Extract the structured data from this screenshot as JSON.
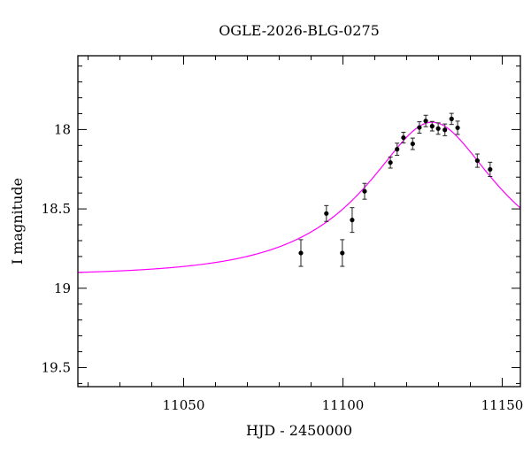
{
  "chart_data": {
    "type": "scatter",
    "title": "OGLE-2026-BLG-0275",
    "xlabel": "HJD - 2450000",
    "ylabel": "I magnitude",
    "xlim": [
      11016.8,
      11155.7
    ],
    "ylim": [
      17.535,
      19.62
    ],
    "y_inverted": true,
    "grid": false,
    "x_ticks": [
      11050,
      11100,
      11150
    ],
    "x_tick_labels": [
      "11050",
      "11100",
      "11150"
    ],
    "x_minor_step": 10,
    "y_ticks": [
      18,
      18.5,
      19,
      19.5
    ],
    "y_tick_labels": [
      "18",
      "18.5",
      "19",
      "19.5"
    ],
    "y_minor_step": 0.1,
    "series": [
      {
        "name": "data",
        "kind": "points_with_errorbars",
        "color": "#000000",
        "x": [
          11086.8,
          11094.8,
          11099.8,
          11102.9,
          11106.8,
          11114.9,
          11117.0,
          11119.0,
          11121.9,
          11124.0,
          11126.0,
          11128.0,
          11129.9,
          11132.0,
          11134.1,
          11136.0,
          11142.2,
          11146.2
        ],
        "y": [
          18.778,
          18.529,
          18.778,
          18.57,
          18.389,
          18.208,
          18.124,
          18.051,
          18.09,
          17.987,
          17.946,
          17.979,
          17.994,
          18.002,
          17.933,
          17.989,
          18.196,
          18.251
        ],
        "yerr": [
          0.084,
          0.05,
          0.084,
          0.078,
          0.05,
          0.035,
          0.038,
          0.034,
          0.036,
          0.036,
          0.036,
          0.03,
          0.036,
          0.037,
          0.035,
          0.042,
          0.042,
          0.045
        ]
      },
      {
        "name": "model",
        "kind": "paczynski_curve",
        "color": "#ff00ff",
        "baseline_mag": 18.92,
        "t0": 11128.0,
        "tE": 38.4,
        "u0": 0.44
      }
    ]
  }
}
